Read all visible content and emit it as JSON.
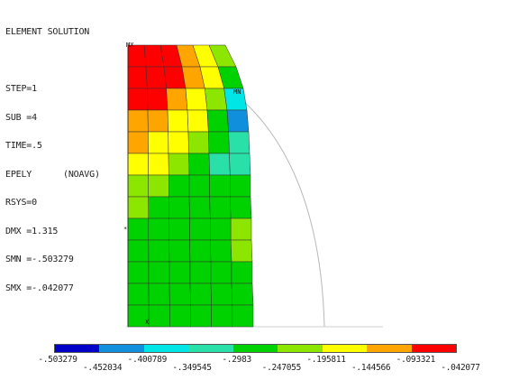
{
  "header_lines": [
    "ELEMENT SOLUTION",
    "",
    "STEP=1",
    "SUB =4",
    "TIME=.5",
    "EPELY      (NOAVG)",
    "RSYS=0",
    "DMX =1.315",
    "SMN =-.503279",
    "SMX =-.042077"
  ],
  "plot": {
    "max_marker": "MX",
    "min_marker": "MN",
    "axis_marker": "X"
  },
  "legend": {
    "colors": [
      "#0000c8",
      "#0f8fdc",
      "#00e6e6",
      "#28e0a8",
      "#00d200",
      "#8ce600",
      "#ffff00",
      "#ffa500",
      "#ff0000"
    ],
    "labels_row1": [
      "-.503279",
      "-.400789",
      "-.2983",
      "-.195811",
      "-.093321"
    ],
    "labels_row2": [
      "-.452034",
      "-.349545",
      "-.247055",
      "-.144566",
      "-.042077"
    ]
  }
}
